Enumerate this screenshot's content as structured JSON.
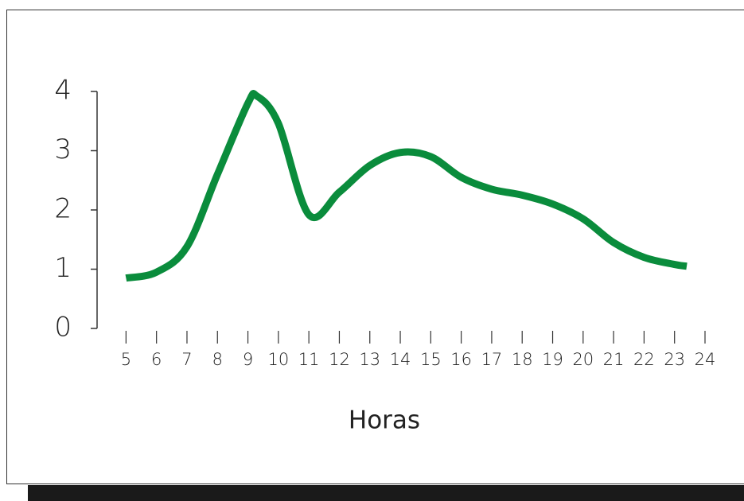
{
  "chart_data": {
    "type": "line",
    "x_label": "Horas",
    "x": [
      5,
      6,
      7,
      8,
      9,
      9.3,
      10,
      11,
      12,
      13,
      14,
      15,
      16,
      17,
      18,
      19,
      20,
      21,
      22,
      23,
      23.4
    ],
    "series": [
      {
        "color": "#0a8c3c",
        "values": [
          0.85,
          0.95,
          1.38,
          2.6,
          3.8,
          3.92,
          3.46,
          1.92,
          2.3,
          2.75,
          2.97,
          2.9,
          2.55,
          2.35,
          2.25,
          2.1,
          1.85,
          1.45,
          1.2,
          1.08,
          1.05
        ]
      }
    ],
    "xlim": [
      4.05,
      24
    ],
    "xticks": [
      5,
      6,
      7,
      8,
      9,
      10,
      11,
      12,
      13,
      14,
      15,
      16,
      17,
      18,
      19,
      20,
      21,
      22,
      23,
      24
    ],
    "ylim": [
      0,
      4
    ],
    "yticks": [
      0,
      1,
      2,
      3,
      4
    ]
  }
}
